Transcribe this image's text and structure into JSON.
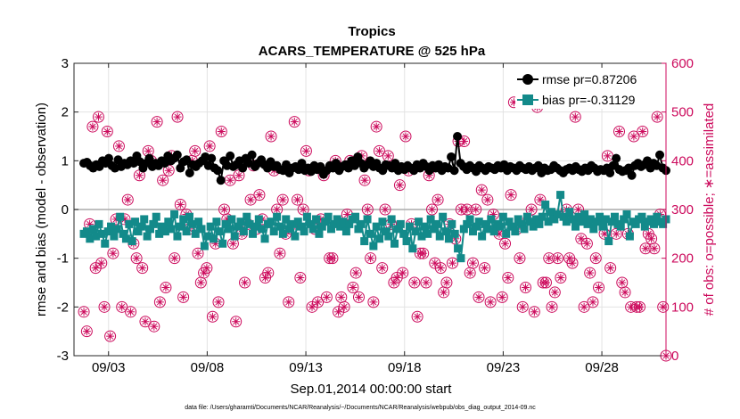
{
  "chart_data": {
    "type": "line",
    "title": "Tropics",
    "subtitle": "ACARS_TEMPERATURE @ 525 hPa",
    "xlabel": "Sep.01,2014 00:00:00 start",
    "ylabel": "rmse and bias (model - observation)",
    "y2label": "# of obs: o=possible; ∗=assimilated",
    "footnote": "data file: /Users/gharamti/Documents/NCAR/Reanalysis/~/Documents/NCAR/Reanalysis/webpub/obs_diag_output_2014-09.nc",
    "x_unit": "days since Sep.01,2014 00:00:00",
    "xlim": [
      0.25,
      30.25
    ],
    "ylim": [
      -3,
      3
    ],
    "y2lim": [
      0,
      600
    ],
    "xticks": [
      2.0,
      7.0,
      12.0,
      17.0,
      22.0,
      27.0
    ],
    "xtick_labels": [
      "09/03",
      "09/08",
      "09/13",
      "09/18",
      "09/23",
      "09/28"
    ],
    "yticks": [
      -3,
      -2,
      -1,
      0,
      1,
      2,
      3
    ],
    "y2ticks": [
      0,
      100,
      200,
      300,
      400,
      500,
      600
    ],
    "legend_position": "top-right",
    "colors": {
      "rmse": "#000000",
      "bias": "#138a8a",
      "obs": "#cc0a5c",
      "zero_line": "#aaaaaa"
    },
    "series": [
      {
        "name": "rmse",
        "legend": "rmse pr=0.87206",
        "marker": "circle",
        "values": [
          0.95,
          0.97,
          0.9,
          0.85,
          0.92,
          0.88,
          1.0,
          0.95,
          1.05,
          0.9,
          0.85,
          1.02,
          0.88,
          0.95,
          0.92,
          1.0,
          0.95,
          1.1,
          0.98,
          0.85,
          0.95,
          1.05,
          0.88,
          0.95,
          0.9,
          1.0,
          0.95,
          1.1,
          1.0,
          1.05,
          1.12,
          0.85,
          0.98,
          1.02,
          0.75,
          0.92,
          0.88,
          0.95,
          1.0,
          1.08,
          0.9,
          1.05,
          0.85,
          0.8,
          0.6,
          1.0,
          0.9,
          1.1,
          0.88,
          0.92,
          1.0,
          0.85,
          1.05,
          0.95,
          1.12,
          0.88,
          0.95,
          1.02,
          0.92,
          0.85,
          0.98,
          0.88,
          0.9,
          0.82,
          0.8,
          0.92,
          0.75,
          0.85,
          0.88,
          0.82,
          0.95,
          0.8,
          0.85,
          0.78,
          0.9,
          0.82,
          0.88,
          0.72,
          0.8,
          0.9,
          0.85,
          0.95,
          0.8,
          0.88,
          0.92,
          0.85,
          1.0,
          0.9,
          1.08,
          0.95,
          0.85,
          0.92,
          1.0,
          0.88,
          0.95,
          0.85,
          0.8,
          0.92,
          0.9,
          0.85,
          0.95,
          0.8,
          0.88,
          0.82,
          0.9,
          0.85,
          0.8,
          0.92,
          0.85,
          0.95,
          0.88,
          0.8,
          0.9,
          0.85,
          0.92,
          0.8,
          0.88,
          0.85,
          1.08,
          0.8,
          1.5,
          0.95,
          0.88,
          0.82,
          0.9,
          0.85,
          0.78,
          0.9,
          0.85,
          0.8,
          0.88,
          0.85,
          0.82,
          0.9,
          0.85,
          0.92,
          0.8,
          0.88,
          0.85,
          0.8,
          0.9,
          0.85,
          0.82,
          0.88,
          0.8,
          0.85,
          0.9,
          0.75,
          0.85,
          0.8,
          0.82,
          0.9,
          0.85,
          0.8,
          0.75,
          0.82,
          0.85,
          0.8,
          0.88,
          0.82,
          0.78,
          0.85,
          0.8,
          0.9,
          0.85,
          0.78,
          0.82,
          0.8,
          0.85,
          0.75,
          0.9,
          1.05,
          0.82,
          0.78,
          0.8,
          0.85,
          0.7,
          0.9,
          0.95,
          0.88,
          0.92,
          1.0,
          0.85,
          0.95,
          0.9,
          1.12,
          0.85,
          0.8
        ]
      },
      {
        "name": "bias",
        "legend": "bias pr=-0.31129",
        "marker": "square",
        "values": [
          -0.5,
          -0.45,
          -0.6,
          -0.4,
          -0.55,
          -0.3,
          -0.5,
          -0.7,
          -0.45,
          -0.35,
          -0.55,
          -0.4,
          -0.15,
          -0.5,
          -0.6,
          -0.3,
          -0.65,
          -0.25,
          -0.45,
          -0.35,
          -0.2,
          -0.55,
          -0.4,
          -0.3,
          -0.15,
          -0.5,
          -0.35,
          -0.45,
          -0.25,
          -0.4,
          -0.1,
          -0.55,
          -0.35,
          -0.2,
          -0.45,
          -0.15,
          -0.3,
          -0.5,
          -0.25,
          -0.4,
          -0.75,
          -0.55,
          -0.35,
          -0.6,
          -0.25,
          -0.45,
          -0.7,
          -0.3,
          -0.4,
          -0.2,
          -0.55,
          -0.35,
          -0.25,
          -0.45,
          -0.15,
          -0.3,
          -0.5,
          -0.35,
          -0.2,
          -0.4,
          -0.6,
          -0.3,
          -0.25,
          -0.45,
          -0.15,
          -0.35,
          -0.5,
          -0.2,
          -0.4,
          -0.3,
          -0.55,
          -0.25,
          -0.35,
          -0.45,
          -0.15,
          -0.3,
          -0.4,
          -0.2,
          -0.5,
          -0.35,
          -0.25,
          -0.15,
          -0.4,
          -0.3,
          -0.2,
          -0.35,
          -0.25,
          -0.45,
          -0.3,
          -0.2,
          -0.15,
          -0.4,
          -0.3,
          -0.65,
          -0.2,
          -0.5,
          -0.75,
          -0.35,
          -0.6,
          -0.25,
          -0.45,
          -0.55,
          -0.2,
          -0.7,
          -0.4,
          -0.3,
          -0.5,
          -0.65,
          -0.35,
          -0.8,
          -0.45,
          -0.25,
          -0.55,
          -0.35,
          -0.5,
          -0.2,
          -0.4,
          -0.3,
          -0.55,
          -0.15,
          -0.45,
          -0.6,
          -0.3,
          -0.5,
          -0.8,
          -1.0,
          -0.4,
          -0.3,
          -0.2,
          -0.45,
          -0.35,
          -0.25,
          -0.55,
          -0.3,
          -0.4,
          -0.2,
          -0.45,
          -0.3,
          -0.35,
          -0.15,
          -0.5,
          -0.25,
          -0.35,
          -0.45,
          -0.2,
          -0.3,
          -0.4,
          -0.15,
          -0.25,
          -0.35,
          -0.2,
          -0.3,
          -0.15,
          0.1,
          -0.25,
          -0.05,
          -0.2,
          -0.1,
          0.3,
          -0.15,
          -0.25,
          -0.05,
          -0.2,
          -0.35,
          -0.15,
          -0.25,
          -0.1,
          -0.3,
          -0.2,
          -0.4,
          -0.25,
          -0.15,
          -0.35,
          -0.2,
          -0.65,
          -0.25,
          -0.15,
          -0.3,
          -0.35,
          -0.2,
          -0.1,
          -0.55,
          -0.25,
          -0.3,
          -0.2,
          -0.15,
          -0.35,
          -0.25,
          -0.2,
          -0.3,
          -0.15,
          -0.25,
          -0.3,
          -0.2
        ]
      },
      {
        "name": "obs_possible",
        "axis": "right",
        "marker": "circle-open",
        "values": [
          90,
          50,
          270,
          470,
          180,
          490,
          190,
          100,
          460,
          40,
          210,
          280,
          430,
          100,
          280,
          320,
          90,
          230,
          200,
          370,
          180,
          70,
          420,
          400,
          60,
          480,
          110,
          360,
          140,
          380,
          410,
          200,
          490,
          310,
          120,
          290,
          260,
          400,
          420,
          210,
          150,
          170,
          180,
          430,
          80,
          230,
          110,
          460,
          300,
          280,
          360,
          230,
          70,
          370,
          250,
          150,
          270,
          320,
          390,
          260,
          330,
          280,
          160,
          170,
          450,
          380,
          300,
          210,
          320,
          250,
          110,
          260,
          480,
          320,
          160,
          300,
          420,
          380,
          100,
          260,
          110,
          280,
          370,
          120,
          200,
          200,
          400,
          90,
          120,
          100,
          290,
          400,
          140,
          170,
          120,
          410,
          360,
          300,
          200,
          110,
          470,
          420,
          180,
          300,
          410,
          270,
          150,
          160,
          350,
          170,
          450,
          380,
          270,
          150,
          80,
          210,
          210,
          150,
          370,
          300,
          190,
          320,
          180,
          130,
          150,
          270,
          190,
          240,
          440,
          300,
          440,
          300,
          170,
          190,
          300,
          120,
          340,
          180,
          320,
          110,
          290,
          260,
          250,
          120,
          230,
          160,
          330,
          520,
          260,
          200,
          100,
          140,
          280,
          300,
          90,
          510,
          320,
          150,
          150,
          200,
          100,
          130,
          200,
          160,
          520,
          300,
          200,
          190,
          490,
          300,
          240,
          100,
          230,
          170,
          110,
          200,
          140,
          520,
          250,
          410,
          180,
          520,
          250,
          460,
          150,
          130,
          250,
          100,
          450,
          100,
          100,
          460,
          220,
          250,
          240,
          220,
          490,
          290,
          100,
          0
        ]
      },
      {
        "name": "obs_assimilated",
        "axis": "right",
        "marker": "asterisk",
        "values": [
          90,
          50,
          270,
          470,
          180,
          490,
          190,
          100,
          460,
          40,
          210,
          280,
          430,
          100,
          280,
          320,
          90,
          230,
          200,
          370,
          180,
          70,
          420,
          400,
          60,
          480,
          110,
          360,
          140,
          380,
          410,
          200,
          490,
          310,
          120,
          290,
          260,
          400,
          420,
          210,
          150,
          170,
          180,
          430,
          80,
          230,
          110,
          460,
          300,
          280,
          360,
          230,
          70,
          370,
          250,
          150,
          270,
          320,
          390,
          260,
          330,
          280,
          160,
          170,
          450,
          380,
          300,
          210,
          320,
          250,
          110,
          260,
          480,
          320,
          160,
          300,
          420,
          380,
          100,
          260,
          110,
          280,
          370,
          120,
          200,
          200,
          400,
          90,
          120,
          100,
          290,
          400,
          140,
          170,
          120,
          410,
          360,
          300,
          200,
          110,
          470,
          420,
          180,
          300,
          410,
          270,
          150,
          160,
          350,
          170,
          450,
          380,
          270,
          150,
          80,
          210,
          210,
          150,
          370,
          300,
          190,
          320,
          180,
          130,
          150,
          270,
          190,
          240,
          440,
          300,
          440,
          300,
          170,
          190,
          300,
          120,
          340,
          180,
          320,
          110,
          290,
          260,
          250,
          120,
          230,
          160,
          330,
          520,
          260,
          200,
          100,
          140,
          280,
          300,
          90,
          510,
          320,
          150,
          150,
          200,
          100,
          130,
          200,
          160,
          520,
          300,
          200,
          190,
          490,
          300,
          240,
          100,
          230,
          170,
          110,
          200,
          140,
          520,
          250,
          410,
          180,
          520,
          250,
          460,
          150,
          130,
          250,
          100,
          450,
          100,
          100,
          460,
          220,
          250,
          240,
          220,
          490,
          290,
          100,
          0
        ]
      }
    ]
  }
}
